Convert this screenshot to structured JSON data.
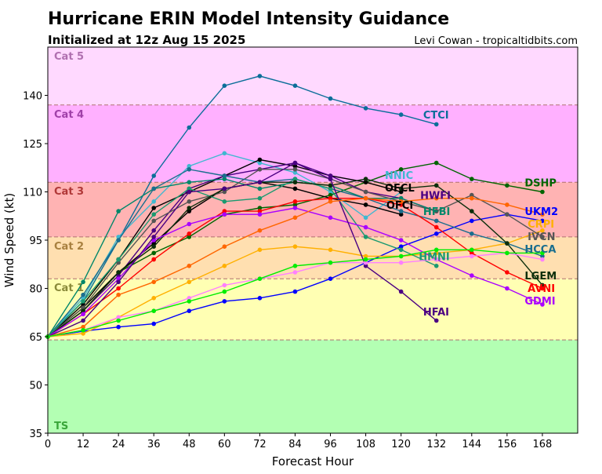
{
  "chart_data": {
    "type": "line",
    "title": "Hurricane ERIN Model Intensity Guidance",
    "subtitle": "Initialized at 12z Aug 15 2025",
    "credit": "Levi Cowan - tropicaltidbits.com",
    "xlabel": "Forecast Hour",
    "ylabel": "Wind Speed (kt)",
    "xlim": [
      0,
      180
    ],
    "ylim": [
      35,
      155
    ],
    "xticks": [
      0,
      12,
      24,
      36,
      48,
      60,
      72,
      84,
      96,
      108,
      120,
      132,
      144,
      156,
      168
    ],
    "yticks": [
      35,
      50,
      65,
      80,
      95,
      110,
      125,
      140
    ],
    "hours": [
      0,
      12,
      24,
      36,
      48,
      60,
      72,
      84,
      96,
      108,
      120,
      132,
      144,
      156,
      168
    ],
    "bands": [
      {
        "name": "TS",
        "min": 35,
        "max": 64,
        "color": "#b3ffb3",
        "label_color": "#3aa63a"
      },
      {
        "name": "Cat 1",
        "min": 64,
        "max": 83,
        "color": "#ffffb3",
        "label_color": "#8a8a3a"
      },
      {
        "name": "Cat 2",
        "min": 83,
        "max": 96,
        "color": "#ffdfb0",
        "label_color": "#a88040"
      },
      {
        "name": "Cat 3",
        "min": 96,
        "max": 113,
        "color": "#ffb3b3",
        "label_color": "#b03838"
      },
      {
        "name": "Cat 4",
        "min": 113,
        "max": 137,
        "color": "#ffb0ff",
        "label_color": "#a040a8"
      },
      {
        "name": "Cat 5",
        "min": 137,
        "max": 155,
        "color": "#ffd9ff",
        "label_color": "#b070b0"
      }
    ],
    "series": [
      {
        "name": "CTCI",
        "color": "#0b6e99",
        "values": [
          65,
          76,
          95,
          115,
          130,
          143,
          146,
          143,
          139,
          136,
          134,
          131
        ],
        "label_at": [
          127.5,
          134
        ]
      },
      {
        "name": "NNIC",
        "color": "#40b8d0",
        "values": [
          65,
          77,
          96,
          107,
          118,
          122,
          119,
          116,
          110,
          102,
          110
        ],
        "label_at": [
          114.5,
          115.3
        ]
      },
      {
        "name": "DSHP",
        "color": "#006400",
        "values": [
          65,
          73,
          85,
          91,
          96,
          103,
          105,
          106,
          109,
          113,
          117,
          119,
          114,
          112,
          110
        ],
        "label_at": [
          162,
          112.9
        ]
      },
      {
        "name": "OFCL",
        "color": "#000000",
        "values": [
          65,
          75,
          89,
          105,
          110,
          115,
          120,
          118,
          115,
          113,
          110
        ],
        "label_at": [
          114.5,
          112.9
        ]
      },
      {
        "name": "HWFI",
        "color": "#4b0082",
        "values": [
          65,
          73,
          84,
          98,
          111,
          115,
          117,
          119,
          115,
          110,
          108,
          104
        ],
        "label_at": [
          126.5,
          109
        ]
      },
      {
        "name": "OFCI",
        "color": "#000000",
        "values": [
          65,
          74,
          85,
          94,
          104,
          111,
          113,
          111,
          108,
          106,
          103
        ],
        "label_at": [
          115,
          106
        ]
      },
      {
        "name": "HFBI",
        "color": "#00876a",
        "values": [
          65,
          82,
          104,
          111,
          113,
          114,
          111,
          113,
          112,
          108,
          108,
          104
        ],
        "label_at": [
          127.5,
          104
        ]
      },
      {
        "name": "UKM2",
        "color": "#0000ff",
        "values": [
          65,
          66.7,
          68,
          69,
          73,
          76,
          77,
          79,
          83,
          88,
          93,
          97,
          101,
          103,
          101
        ],
        "label_at": [
          162,
          104
        ]
      },
      {
        "name": "CRPI",
        "color": "#ffb000",
        "values": [
          65,
          66,
          71,
          77,
          82,
          87,
          92,
          93,
          92,
          90,
          90,
          91,
          92,
          94,
          98
        ],
        "label_at": [
          163,
          101.5
        ]
      },
      {
        "name": "IVCN",
        "color": "#555555",
        "values": [
          65,
          74,
          88,
          101,
          107,
          110,
          117,
          117,
          114,
          110,
          107,
          104,
          109,
          103,
          96
        ],
        "label_at": [
          163,
          99
        ]
      },
      {
        "name": "HCCA",
        "color": "#1a6e8e",
        "values": [
          65,
          78,
          95,
          111,
          117,
          115,
          113,
          114,
          111,
          108,
          104,
          101,
          97,
          94,
          90
        ],
        "label_at": [
          162,
          92.9
        ]
      },
      {
        "name": "HMNI",
        "color": "#1a9a70",
        "values": [
          65,
          76,
          89,
          103,
          111,
          107,
          108,
          114,
          111,
          96,
          92,
          87
        ],
        "label_at": [
          126,
          90
        ]
      },
      {
        "name": "LGEM",
        "color": "#0b2e0b",
        "values": [
          65,
          73,
          85,
          93,
          105,
          111,
          113,
          113,
          112,
          114,
          111,
          112,
          104,
          94,
          81
        ],
        "label_at": [
          162,
          84
        ]
      },
      {
        "name": "AVNI",
        "color": "#ff0000",
        "values": [
          65,
          72,
          80,
          89,
          97,
          104,
          104,
          107,
          108,
          108,
          106,
          99,
          91,
          85,
          80
        ],
        "label_at": [
          163,
          81.9
        ]
      },
      {
        "name": "GDMI",
        "color": "#aa00ff",
        "values": [
          65,
          72,
          83,
          95,
          100,
          103,
          103,
          105,
          102,
          99,
          95,
          89,
          84,
          80,
          75
        ],
        "label_at": [
          162,
          78
        ]
      },
      {
        "name": "HFAI",
        "color": "#4b0082",
        "values": [
          65,
          70,
          82,
          96,
          110,
          111,
          113,
          119,
          114,
          87,
          79,
          70
        ],
        "label_at": [
          127.5,
          72.8
        ]
      },
      {
        "name": "",
        "color": "#ff6600",
        "values": [
          65,
          68,
          78,
          82,
          87,
          93,
          98,
          102,
          107,
          108,
          107,
          108,
          108,
          106,
          103
        ]
      },
      {
        "name": "",
        "color": "#ff80ff",
        "values": [
          65,
          67,
          71,
          73,
          77,
          81,
          83,
          85,
          88,
          88,
          88,
          89,
          90,
          91,
          89
        ]
      },
      {
        "name": "",
        "color": "#00ee00",
        "values": [
          65,
          67,
          70,
          73,
          76,
          79,
          83,
          87,
          88,
          89,
          90,
          92,
          92,
          91,
          91
        ]
      }
    ]
  }
}
